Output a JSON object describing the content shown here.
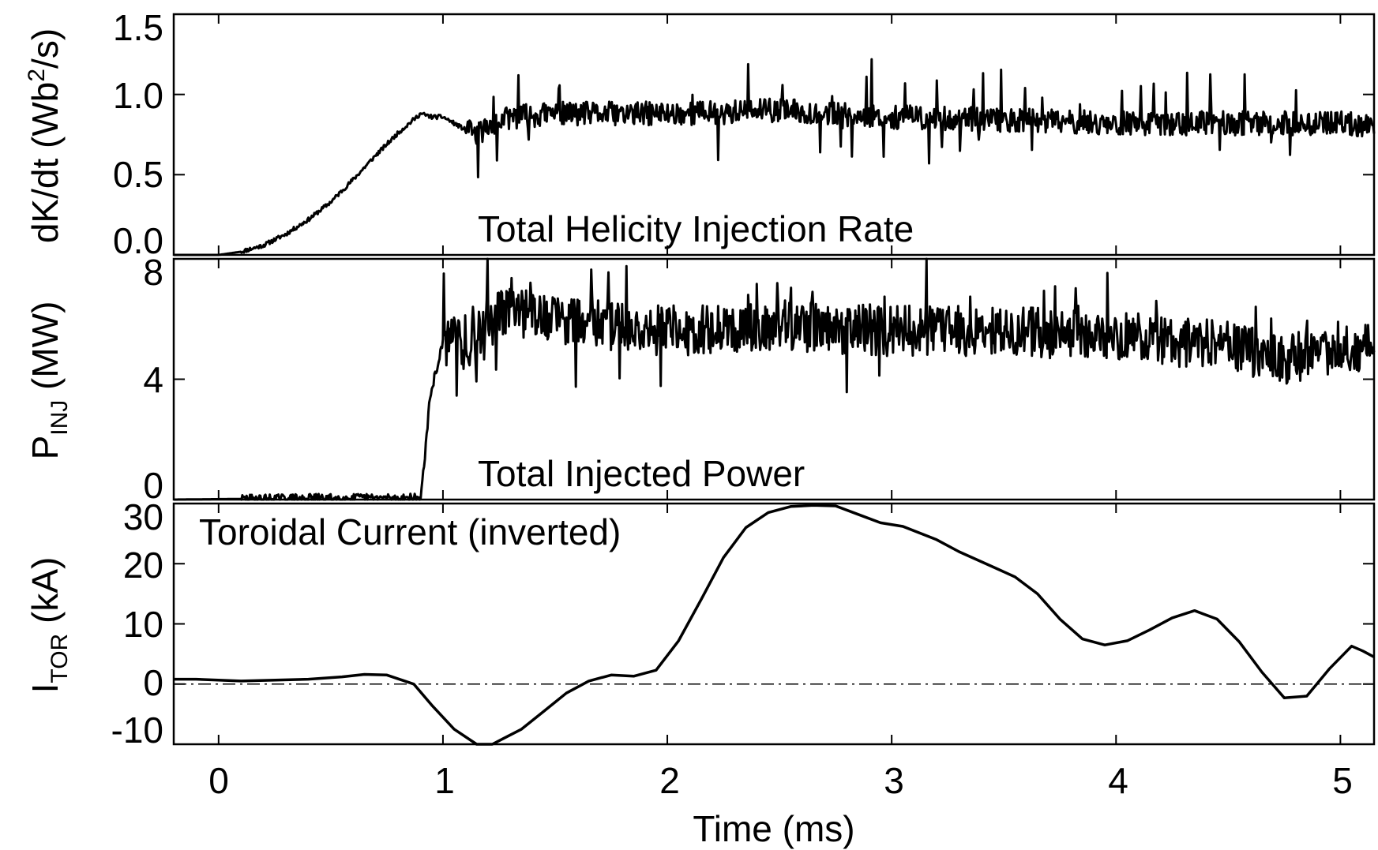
{
  "chart_data": [
    {
      "type": "line",
      "panel": "top",
      "ylabel": "dK/dt (Wb²/s)",
      "ylabel_parts": {
        "pre": "dK/dt (Wb",
        "sup": "2",
        "post": "/s)"
      },
      "annotation": "Total Helicity Injection Rate",
      "xlim": [
        -0.2,
        5.15
      ],
      "ylim": [
        0.0,
        1.5
      ],
      "yticks": [
        "0.0",
        "0.5",
        "1.0",
        "1.5"
      ],
      "ytick_values": [
        0.0,
        0.5,
        1.0,
        1.5
      ],
      "grid": false,
      "noise": {
        "seed": 11,
        "amp": 0.075,
        "spike_prob": 0.045,
        "spike_amp": 0.3
      },
      "series": [
        {
          "x": [
            -0.2,
            0.0,
            0.1,
            0.2,
            0.3,
            0.4,
            0.5,
            0.6,
            0.7,
            0.8,
            0.85,
            0.9,
            0.95,
            1.0,
            1.05,
            1.1,
            1.15,
            1.2,
            1.3,
            1.5,
            2.0,
            2.5,
            3.0,
            3.5,
            4.0,
            4.5,
            5.0,
            5.15
          ],
          "y": [
            0.0,
            0.0,
            0.02,
            0.06,
            0.13,
            0.22,
            0.33,
            0.47,
            0.62,
            0.76,
            0.82,
            0.88,
            0.86,
            0.86,
            0.82,
            0.78,
            0.75,
            0.8,
            0.86,
            0.88,
            0.88,
            0.9,
            0.86,
            0.84,
            0.82,
            0.82,
            0.82,
            0.8
          ],
          "noise_from": 1.1
        }
      ]
    },
    {
      "type": "line",
      "panel": "middle",
      "ylabel": "PINJ (MW)",
      "ylabel_parts": {
        "pre": "P",
        "sub": "INJ",
        "post": " (MW)"
      },
      "annotation": "Total Injected Power",
      "xlim": [
        -0.2,
        5.15
      ],
      "ylim": [
        0,
        8
      ],
      "yticks": [
        "0",
        "4",
        "8"
      ],
      "ytick_values": [
        0,
        4,
        8
      ],
      "grid": false,
      "noise": {
        "seed": 29,
        "amp": 0.85,
        "spike_prob": 0.04,
        "spike_amp": 1.8
      },
      "series": [
        {
          "x": [
            -0.2,
            0.5,
            0.9,
            0.92,
            0.94,
            0.96,
            0.98,
            1.0,
            1.05,
            1.1,
            1.15,
            1.2,
            1.3,
            1.5,
            2.0,
            2.5,
            3.0,
            3.5,
            4.0,
            4.5,
            4.75,
            5.0,
            5.15
          ],
          "y": [
            0.0,
            0.05,
            0.05,
            1.5,
            3.2,
            4.0,
            4.6,
            5.2,
            5.3,
            5.1,
            5.4,
            5.9,
            6.3,
            6.0,
            5.6,
            5.8,
            5.6,
            5.6,
            5.4,
            5.1,
            4.6,
            5.1,
            5.1
          ],
          "noise_from": 1.0
        }
      ]
    },
    {
      "type": "line",
      "panel": "bottom",
      "ylabel": "ITOR (kA)",
      "ylabel_parts": {
        "pre": "I",
        "sub": "TOR",
        "post": " (kA)"
      },
      "annotation": "Toroidal Current (inverted)",
      "xlabel": "Time (ms)",
      "xlim": [
        -0.2,
        5.15
      ],
      "ylim": [
        -10,
        30
      ],
      "yticks": [
        "-10",
        "0",
        "10",
        "20",
        "30"
      ],
      "ytick_values": [
        -10,
        0,
        10,
        20,
        30
      ],
      "xticks": [
        "0",
        "1",
        "2",
        "3",
        "4",
        "5"
      ],
      "xtick_values": [
        0,
        1,
        2,
        3,
        4,
        5
      ],
      "reference_line": {
        "y": 0,
        "style": "dash-dot"
      },
      "grid": false,
      "series": [
        {
          "x": [
            -0.2,
            -0.1,
            0.1,
            0.4,
            0.55,
            0.65,
            0.75,
            0.87,
            0.95,
            1.05,
            1.15,
            1.22,
            1.35,
            1.45,
            1.55,
            1.65,
            1.75,
            1.85,
            1.95,
            2.05,
            2.15,
            2.25,
            2.35,
            2.45,
            2.55,
            2.65,
            2.75,
            2.85,
            2.95,
            3.05,
            3.2,
            3.3,
            3.45,
            3.55,
            3.65,
            3.75,
            3.85,
            3.95,
            4.05,
            4.15,
            4.25,
            4.35,
            4.45,
            4.55,
            4.65,
            4.75,
            4.85,
            4.95,
            5.05,
            5.1,
            5.15
          ],
          "y": [
            0.8,
            0.8,
            0.5,
            0.8,
            1.2,
            1.6,
            1.5,
            0.0,
            -3.5,
            -7.5,
            -11.0,
            -12.0,
            -7.5,
            -4.5,
            -1.5,
            0.5,
            1.5,
            1.3,
            2.3,
            7.2,
            14.0,
            21.0,
            26.0,
            28.5,
            29.5,
            29.7,
            29.6,
            28.2,
            26.8,
            26.2,
            24.0,
            22.0,
            19.5,
            17.8,
            15.0,
            10.8,
            7.5,
            6.5,
            7.2,
            9.0,
            11.0,
            12.2,
            10.8,
            7.0,
            2.0,
            -2.3,
            -2.0,
            2.5,
            6.3,
            5.5,
            4.5
          ]
        }
      ]
    }
  ]
}
